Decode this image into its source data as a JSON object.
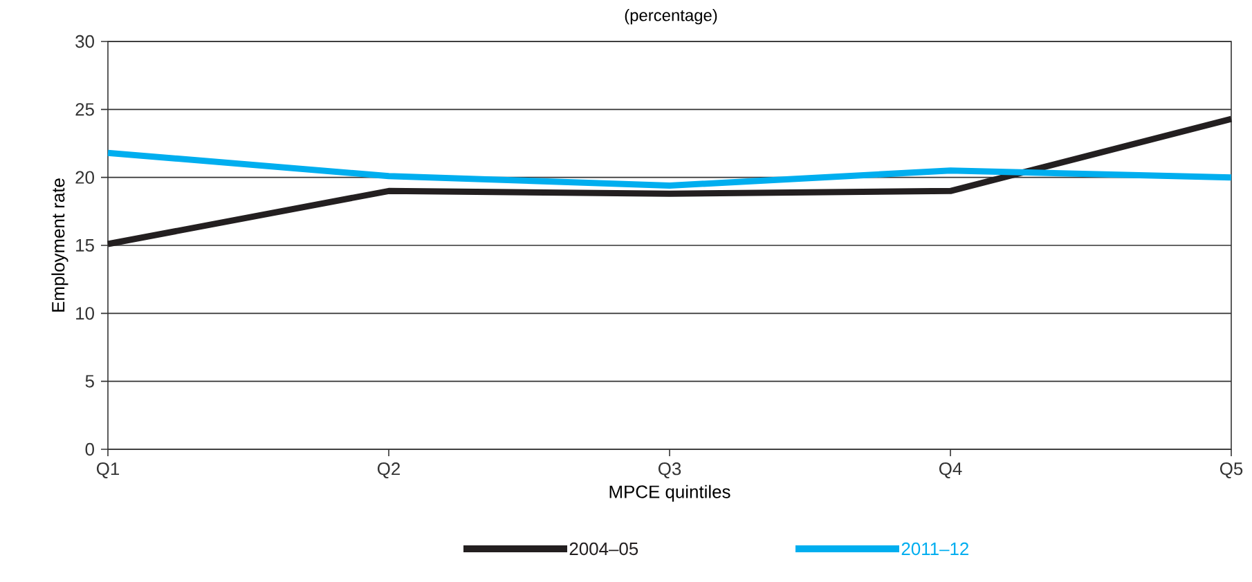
{
  "chart_data": {
    "type": "line",
    "subtitle": "(percentage)",
    "xlabel": "MPCE quintiles",
    "ylabel": "Employment rate",
    "categories": [
      "Q1",
      "Q2",
      "Q3",
      "Q4",
      "Q5"
    ],
    "series": [
      {
        "name": "2004–05",
        "color": "#231f20",
        "values": [
          15.1,
          19.0,
          18.8,
          19.0,
          24.3
        ]
      },
      {
        "name": "2011–12",
        "color": "#00aeef",
        "values": [
          21.8,
          20.1,
          19.4,
          20.5,
          20.0
        ]
      }
    ],
    "ylim": [
      0,
      30
    ],
    "yticks": [
      0,
      5,
      10,
      15,
      20,
      25,
      30
    ],
    "grid": "y",
    "legend": "bottom",
    "marker": "none",
    "line_style": "solid"
  }
}
